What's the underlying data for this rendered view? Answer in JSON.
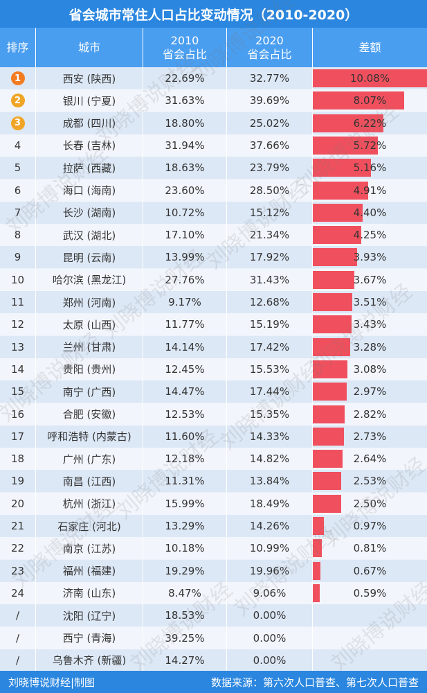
{
  "title": "省会城市常住人口占比变动情况（2010-2020）",
  "header": {
    "rank": "排序",
    "city": "城市",
    "y2010_line1": "2010",
    "y2010_line2": "省会占比",
    "y2020_line1": "2020",
    "y2020_line2": "省会占比",
    "diff": "差额"
  },
  "footer": {
    "credit": "刘晓博说财经|制图",
    "source": "数据来源：第六次人口普查、第七次人口普查"
  },
  "watermark": "刘晓博说财经",
  "colors": {
    "title_bg": "#2a86df",
    "header_bg": "#4a9ef0",
    "bar": "#f0505e",
    "gold": "#f0a526",
    "orange": "#f27c22"
  },
  "chart_data": {
    "type": "table",
    "bar_max": 10.08,
    "rows": [
      {
        "rank": "1",
        "city": "西安 (陕西)",
        "y2010": "22.69%",
        "y2020": "32.77%",
        "diff": "10.08%",
        "diff_value": 10.08
      },
      {
        "rank": "2",
        "city": "银川 (宁夏)",
        "y2010": "31.63%",
        "y2020": "39.69%",
        "diff": "8.07%",
        "diff_value": 8.07
      },
      {
        "rank": "3",
        "city": "成都 (四川)",
        "y2010": "18.80%",
        "y2020": "25.02%",
        "diff": "6.22%",
        "diff_value": 6.22
      },
      {
        "rank": "4",
        "city": "长春 (吉林)",
        "y2010": "31.94%",
        "y2020": "37.66%",
        "diff": "5.72%",
        "diff_value": 5.72
      },
      {
        "rank": "5",
        "city": "拉萨 (西藏)",
        "y2010": "18.63%",
        "y2020": "23.79%",
        "diff": "5.16%",
        "diff_value": 5.16
      },
      {
        "rank": "6",
        "city": "海口 (海南)",
        "y2010": "23.60%",
        "y2020": "28.50%",
        "diff": "4.91%",
        "diff_value": 4.91
      },
      {
        "rank": "7",
        "city": "长沙 (湖南)",
        "y2010": "10.72%",
        "y2020": "15.12%",
        "diff": "4.40%",
        "diff_value": 4.4
      },
      {
        "rank": "8",
        "city": "武汉 (湖北)",
        "y2010": "17.10%",
        "y2020": "21.34%",
        "diff": "4.25%",
        "diff_value": 4.25
      },
      {
        "rank": "9",
        "city": "昆明 (云南)",
        "y2010": "13.99%",
        "y2020": "17.92%",
        "diff": "3.93%",
        "diff_value": 3.93
      },
      {
        "rank": "10",
        "city": "哈尔滨 (黑龙江)",
        "y2010": "27.76%",
        "y2020": "31.43%",
        "diff": "3.67%",
        "diff_value": 3.67
      },
      {
        "rank": "11",
        "city": "郑州 (河南)",
        "y2010": "9.17%",
        "y2020": "12.68%",
        "diff": "3.51%",
        "diff_value": 3.51
      },
      {
        "rank": "12",
        "city": "太原 (山西)",
        "y2010": "11.77%",
        "y2020": "15.19%",
        "diff": "3.43%",
        "diff_value": 3.43
      },
      {
        "rank": "13",
        "city": "兰州 (甘肃)",
        "y2010": "14.14%",
        "y2020": "17.42%",
        "diff": "3.28%",
        "diff_value": 3.28
      },
      {
        "rank": "14",
        "city": "贵阳 (贵州)",
        "y2010": "12.45%",
        "y2020": "15.53%",
        "diff": "3.08%",
        "diff_value": 3.08
      },
      {
        "rank": "15",
        "city": "南宁 (广西)",
        "y2010": "14.47%",
        "y2020": "17.44%",
        "diff": "2.97%",
        "diff_value": 2.97
      },
      {
        "rank": "16",
        "city": "合肥 (安徽)",
        "y2010": "12.53%",
        "y2020": "15.35%",
        "diff": "2.82%",
        "diff_value": 2.82
      },
      {
        "rank": "17",
        "city": "呼和浩特 (内蒙古)",
        "y2010": "11.60%",
        "y2020": "14.33%",
        "diff": "2.73%",
        "diff_value": 2.73
      },
      {
        "rank": "18",
        "city": "广州 (广东)",
        "y2010": "12.18%",
        "y2020": "14.82%",
        "diff": "2.64%",
        "diff_value": 2.64
      },
      {
        "rank": "19",
        "city": "南昌 (江西)",
        "y2010": "11.31%",
        "y2020": "13.84%",
        "diff": "2.53%",
        "diff_value": 2.53
      },
      {
        "rank": "20",
        "city": "杭州 (浙江)",
        "y2010": "15.99%",
        "y2020": "18.49%",
        "diff": "2.50%",
        "diff_value": 2.5
      },
      {
        "rank": "21",
        "city": "石家庄 (河北)",
        "y2010": "13.29%",
        "y2020": "14.26%",
        "diff": "0.97%",
        "diff_value": 0.97
      },
      {
        "rank": "22",
        "city": "南京 (江苏)",
        "y2010": "10.18%",
        "y2020": "10.99%",
        "diff": "0.81%",
        "diff_value": 0.81
      },
      {
        "rank": "23",
        "city": "福州 (福建)",
        "y2010": "19.29%",
        "y2020": "19.96%",
        "diff": "0.67%",
        "diff_value": 0.67
      },
      {
        "rank": "24",
        "city": "济南 (山东)",
        "y2010": "8.47%",
        "y2020": "9.06%",
        "diff": "0.59%",
        "diff_value": 0.59
      },
      {
        "rank": "/",
        "city": "沈阳 (辽宁)",
        "y2010": "18.53%",
        "y2020": "0.00%",
        "diff": "",
        "diff_value": 0
      },
      {
        "rank": "/",
        "city": "西宁 (青海)",
        "y2010": "39.25%",
        "y2020": "0.00%",
        "diff": "",
        "diff_value": 0
      },
      {
        "rank": "/",
        "city": "乌鲁木齐 (新疆)",
        "y2010": "14.27%",
        "y2020": "0.00%",
        "diff": "",
        "diff_value": 0
      }
    ]
  }
}
